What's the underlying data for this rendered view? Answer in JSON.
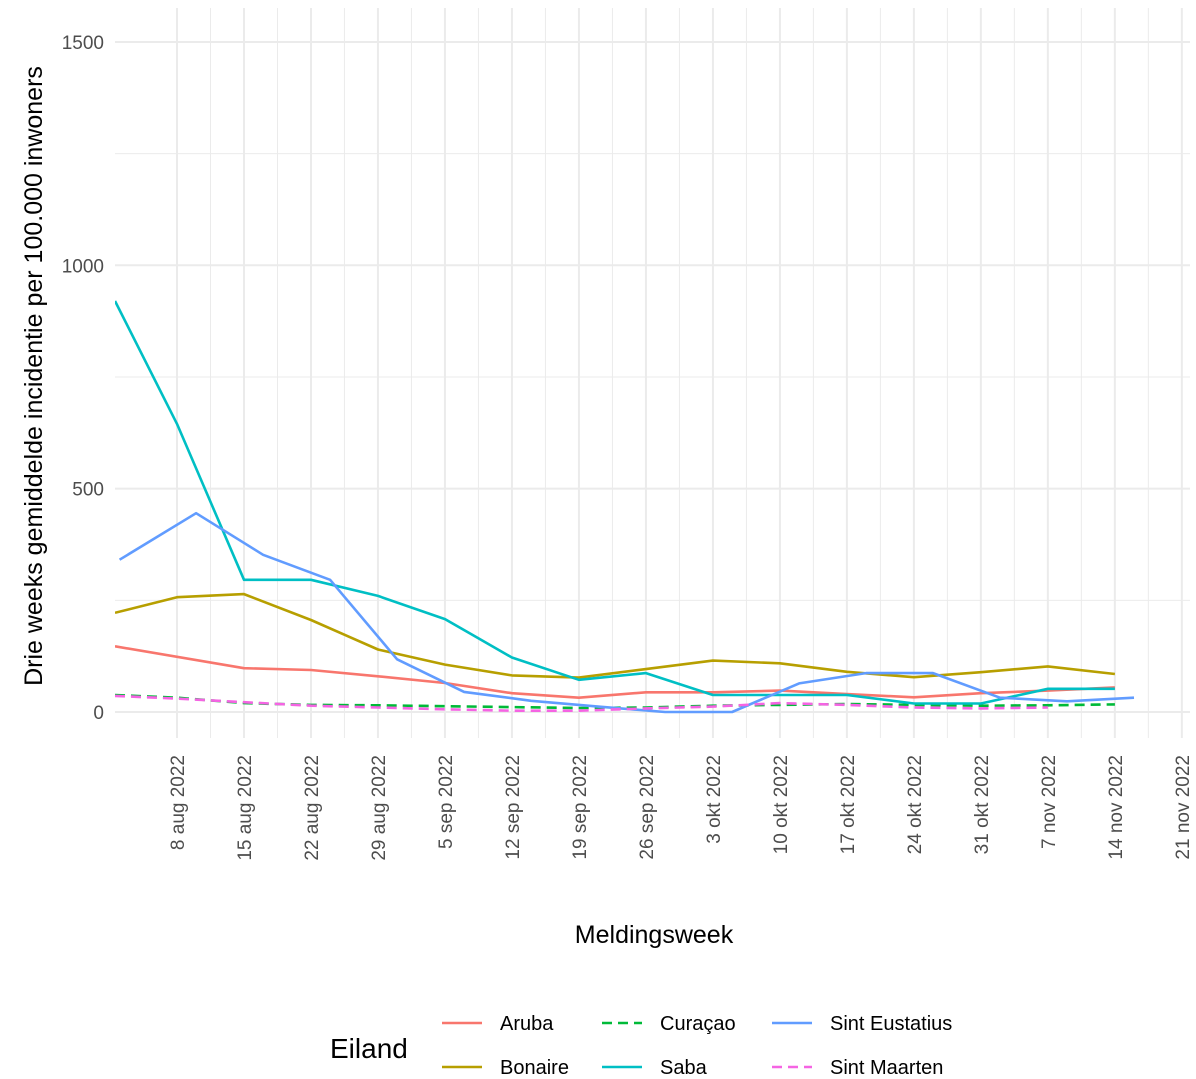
{
  "chart_data": {
    "type": "line",
    "xlabel": "Meldingsweek",
    "ylabel": "Drie weeks gemiddelde incidentie per 100.000 inwoners",
    "ylim": [
      0,
      1500
    ],
    "yticks": [
      0,
      500,
      1000,
      1500
    ],
    "xlim": [
      "2022-07-31",
      "2022-11-23"
    ],
    "xticks": [
      {
        "date": "2022-08-08",
        "label": "8 aug 2022"
      },
      {
        "date": "2022-08-15",
        "label": "15 aug 2022"
      },
      {
        "date": "2022-08-22",
        "label": "22 aug 2022"
      },
      {
        "date": "2022-08-29",
        "label": "29 aug 2022"
      },
      {
        "date": "2022-09-05",
        "label": "5 sep 2022"
      },
      {
        "date": "2022-09-12",
        "label": "12 sep 2022"
      },
      {
        "date": "2022-09-19",
        "label": "19 sep 2022"
      },
      {
        "date": "2022-09-26",
        "label": "26 sep 2022"
      },
      {
        "date": "2022-10-03",
        "label": "3 okt 2022"
      },
      {
        "date": "2022-10-10",
        "label": "10 okt 2022"
      },
      {
        "date": "2022-10-17",
        "label": "17 okt 2022"
      },
      {
        "date": "2022-10-24",
        "label": "24 okt 2022"
      },
      {
        "date": "2022-10-31",
        "label": "31 okt 2022"
      },
      {
        "date": "2022-11-07",
        "label": "7 nov 2022"
      },
      {
        "date": "2022-11-14",
        "label": "14 nov 2022"
      },
      {
        "date": "2022-11-21",
        "label": "21 nov 2022"
      }
    ],
    "grid": true,
    "legend": {
      "title": "Eiland",
      "position": "bottom"
    },
    "series": [
      {
        "name": "Aruba",
        "color": "#F8766D",
        "dash": "solid",
        "points": [
          [
            "2022-08-01",
            147
          ],
          [
            "2022-08-15",
            98
          ],
          [
            "2022-08-22",
            94
          ],
          [
            "2022-08-29",
            80
          ],
          [
            "2022-09-05",
            65
          ],
          [
            "2022-09-12",
            42
          ],
          [
            "2022-09-19",
            32
          ],
          [
            "2022-09-26",
            44
          ],
          [
            "2022-10-03",
            44
          ],
          [
            "2022-10-10",
            48
          ],
          [
            "2022-10-17",
            40
          ],
          [
            "2022-10-24",
            33
          ],
          [
            "2022-10-31",
            42
          ],
          [
            "2022-11-07",
            48
          ],
          [
            "2022-11-14",
            55
          ]
        ]
      },
      {
        "name": "Bonaire",
        "color": "#B79F00",
        "dash": "solid",
        "points": [
          [
            "2022-08-01",
            222
          ],
          [
            "2022-08-08",
            257
          ],
          [
            "2022-08-15",
            264
          ],
          [
            "2022-08-22",
            206
          ],
          [
            "2022-08-29",
            140
          ],
          [
            "2022-09-05",
            106
          ],
          [
            "2022-09-12",
            82
          ],
          [
            "2022-09-19",
            77
          ],
          [
            "2022-09-26",
            96
          ],
          [
            "2022-10-03",
            115
          ],
          [
            "2022-10-10",
            109
          ],
          [
            "2022-10-17",
            90
          ],
          [
            "2022-10-24",
            78
          ],
          [
            "2022-10-31",
            89
          ],
          [
            "2022-11-07",
            102
          ],
          [
            "2022-11-14",
            85
          ]
        ]
      },
      {
        "name": "Curaçao",
        "color": "#00BA38",
        "dash": "dashed",
        "points": [
          [
            "2022-08-01",
            38
          ],
          [
            "2022-08-08",
            32
          ],
          [
            "2022-08-15",
            20
          ],
          [
            "2022-08-22",
            16
          ],
          [
            "2022-08-29",
            15
          ],
          [
            "2022-09-05",
            13
          ],
          [
            "2022-09-12",
            11
          ],
          [
            "2022-09-19",
            9
          ],
          [
            "2022-09-26",
            10
          ],
          [
            "2022-10-03",
            14
          ],
          [
            "2022-10-10",
            16
          ],
          [
            "2022-10-17",
            18
          ],
          [
            "2022-10-24",
            16
          ],
          [
            "2022-10-31",
            14
          ],
          [
            "2022-11-07",
            15
          ],
          [
            "2022-11-14",
            17
          ]
        ]
      },
      {
        "name": "Saba",
        "color": "#00BFC4",
        "dash": "solid",
        "points": [
          [
            "2022-08-01",
            920
          ],
          [
            "2022-08-08",
            645
          ],
          [
            "2022-08-15",
            296
          ],
          [
            "2022-08-22",
            296
          ],
          [
            "2022-08-29",
            260
          ],
          [
            "2022-09-05",
            208
          ],
          [
            "2022-09-12",
            122
          ],
          [
            "2022-09-19",
            72
          ],
          [
            "2022-09-26",
            87
          ],
          [
            "2022-10-03",
            38
          ],
          [
            "2022-10-10",
            38
          ],
          [
            "2022-10-17",
            38
          ],
          [
            "2022-10-24",
            19
          ],
          [
            "2022-10-31",
            19
          ],
          [
            "2022-11-07",
            52
          ],
          [
            "2022-11-14",
            52
          ]
        ]
      },
      {
        "name": "Sint Eustatius",
        "color": "#619CFF",
        "dash": "solid",
        "points": [
          [
            "2022-08-02",
            341
          ],
          [
            "2022-08-10",
            445
          ],
          [
            "2022-08-17",
            352
          ],
          [
            "2022-08-24",
            296
          ],
          [
            "2022-08-31",
            118
          ],
          [
            "2022-09-07",
            45
          ],
          [
            "2022-09-14",
            25
          ],
          [
            "2022-09-21",
            12
          ],
          [
            "2022-09-28",
            0
          ],
          [
            "2022-10-05",
            0
          ],
          [
            "2022-10-12",
            64
          ],
          [
            "2022-10-19",
            87
          ],
          [
            "2022-10-26",
            87
          ],
          [
            "2022-11-02",
            32
          ],
          [
            "2022-11-09",
            24
          ],
          [
            "2022-11-16",
            32
          ]
        ]
      },
      {
        "name": "Sint Maarten",
        "color": "#F564E3",
        "dash": "dashed",
        "points": [
          [
            "2022-08-01",
            36
          ],
          [
            "2022-08-08",
            30
          ],
          [
            "2022-08-15",
            22
          ],
          [
            "2022-08-22",
            14
          ],
          [
            "2022-08-29",
            10
          ],
          [
            "2022-09-05",
            6
          ],
          [
            "2022-09-12",
            3
          ],
          [
            "2022-09-19",
            3
          ],
          [
            "2022-09-26",
            8
          ],
          [
            "2022-10-03",
            12
          ],
          [
            "2022-10-10",
            20
          ],
          [
            "2022-10-17",
            16
          ],
          [
            "2022-10-24",
            10
          ],
          [
            "2022-10-31",
            8
          ],
          [
            "2022-11-07",
            10
          ]
        ]
      }
    ]
  }
}
